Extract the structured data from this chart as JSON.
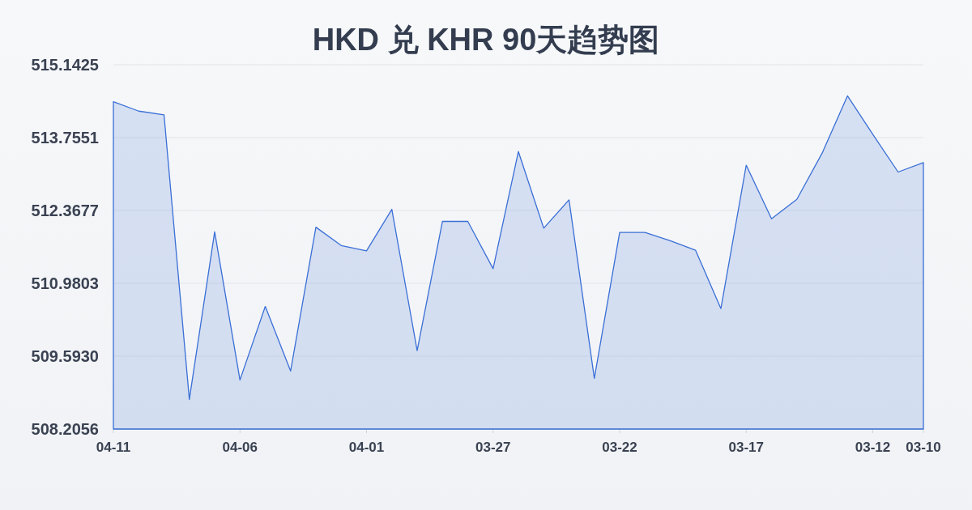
{
  "chart_data": {
    "type": "area",
    "title": "HKD 兑 KHR 90天趋势图",
    "x": [
      "--04-11",
      "--04-10",
      "--04-09",
      "--04-08",
      "--04-07",
      "--04-06",
      "--04-05",
      "--04-04",
      "--04-03",
      "--04-02",
      "--04-01",
      "--03-31",
      "--03-30",
      "--03-29",
      "--03-28",
      "--03-27",
      "--03-26",
      "--03-25",
      "--03-24",
      "--03-23",
      "--03-22",
      "--03-21",
      "--03-20",
      "--03-19",
      "--03-18",
      "--03-17",
      "--03-16",
      "--03-15",
      "--03-14",
      "--03-13",
      "--03-12",
      "--03-11",
      "--03-10"
    ],
    "values": [
      514.44,
      514.26,
      514.19,
      508.77,
      511.96,
      509.14,
      510.54,
      509.31,
      512.05,
      511.7,
      511.6,
      512.39,
      509.7,
      512.16,
      512.16,
      511.26,
      513.49,
      512.03,
      512.57,
      509.17,
      511.95,
      511.95,
      511.79,
      511.61,
      510.5,
      513.23,
      512.21,
      512.58,
      513.46,
      514.55,
      513.82,
      513.1,
      513.28
    ],
    "color": "#3a6fd6",
    "xlim": [
      "--04-11",
      "--03-10"
    ],
    "xticks": [
      {
        "value": "--04-11",
        "label": "04-11"
      },
      {
        "value": "--04-06",
        "label": "04-06"
      },
      {
        "value": "--04-01",
        "label": "04-01"
      },
      {
        "value": "--03-27",
        "label": "03-27"
      },
      {
        "value": "--03-22",
        "label": "03-22"
      },
      {
        "value": "--03-17",
        "label": "03-17"
      },
      {
        "value": "--03-12",
        "label": "03-12"
      },
      {
        "value": "--03-10",
        "label": "03-10"
      }
    ],
    "ylim": [
      508.2056,
      515.1425
    ],
    "yticks": [
      508.2056,
      {
        "value": 509.593,
        "label": "509.5930"
      },
      510.9803,
      512.3677,
      513.7551,
      515.1425
    ],
    "grid": "y"
  }
}
